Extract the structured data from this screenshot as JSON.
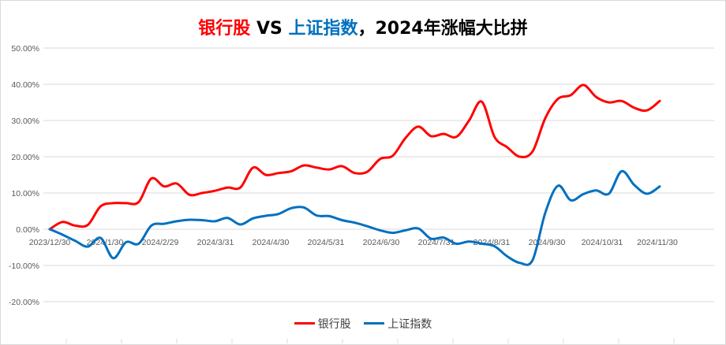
{
  "title": {
    "part1": "银行股",
    "part2": " VS ",
    "part3": "上证指数",
    "part4": "，2024年涨幅大比拼"
  },
  "colors": {
    "bank": "#ff0000",
    "index": "#0070c0",
    "grid": "#d9d9d9"
  },
  "chart_data": {
    "type": "line",
    "smooth": true,
    "ylim": [
      -0.2,
      0.5
    ],
    "y_ticks": [
      "-20.00%",
      "-10.00%",
      "0.00%",
      "10.00%",
      "20.00%",
      "30.00%",
      "40.00%",
      "50.00%"
    ],
    "y_tick_values": [
      -0.2,
      -0.1,
      0,
      0.1,
      0.2,
      0.3,
      0.4,
      0.5
    ],
    "x_tick_labels": [
      "2023/12/30",
      "2024/1/30",
      "2024/2/29",
      "2024/3/31",
      "2024/4/30",
      "2024/5/31",
      "2024/6/30",
      "2024/7/31",
      "2024/8/31",
      "2024/9/30",
      "2024/10/31",
      "2024/11/30"
    ],
    "grid": true,
    "legend_position": "bottom",
    "series": [
      {
        "name": "银行股",
        "color": "#ff0000",
        "values": [
          0,
          2.0,
          1.0,
          1.2,
          6.3,
          7.2,
          7.2,
          7.5,
          14.0,
          11.8,
          12.6,
          9.5,
          10.0,
          10.6,
          11.5,
          11.5,
          17.0,
          15.0,
          15.5,
          16.0,
          17.6,
          17.0,
          16.5,
          17.4,
          15.5,
          15.9,
          19.4,
          20.3,
          25.2,
          28.3,
          25.7,
          26.3,
          25.5,
          30.0,
          35.2,
          25.5,
          22.6,
          20.0,
          21.5,
          30.7,
          36.0,
          37.0,
          39.8,
          36.5,
          35.0,
          35.4,
          33.5,
          32.8,
          35.4
        ]
      },
      {
        "name": "上证指数",
        "color": "#0070c0",
        "values": [
          0,
          -1.5,
          -3.2,
          -4.8,
          -2.4,
          -8.0,
          -3.6,
          -4.0,
          1.0,
          1.5,
          2.2,
          2.6,
          2.5,
          2.2,
          3.1,
          1.3,
          3.0,
          3.7,
          4.2,
          5.8,
          6.0,
          3.8,
          3.6,
          2.5,
          1.8,
          0.8,
          -0.3,
          -1.0,
          -0.3,
          0.2,
          -2.6,
          -2.3,
          -4.0,
          -3.4,
          -4.0,
          -4.7,
          -7.5,
          -9.3,
          -8.5,
          4.6,
          12.0,
          8.0,
          9.7,
          10.7,
          9.8,
          16.0,
          12.2,
          9.8,
          11.8
        ]
      }
    ]
  }
}
